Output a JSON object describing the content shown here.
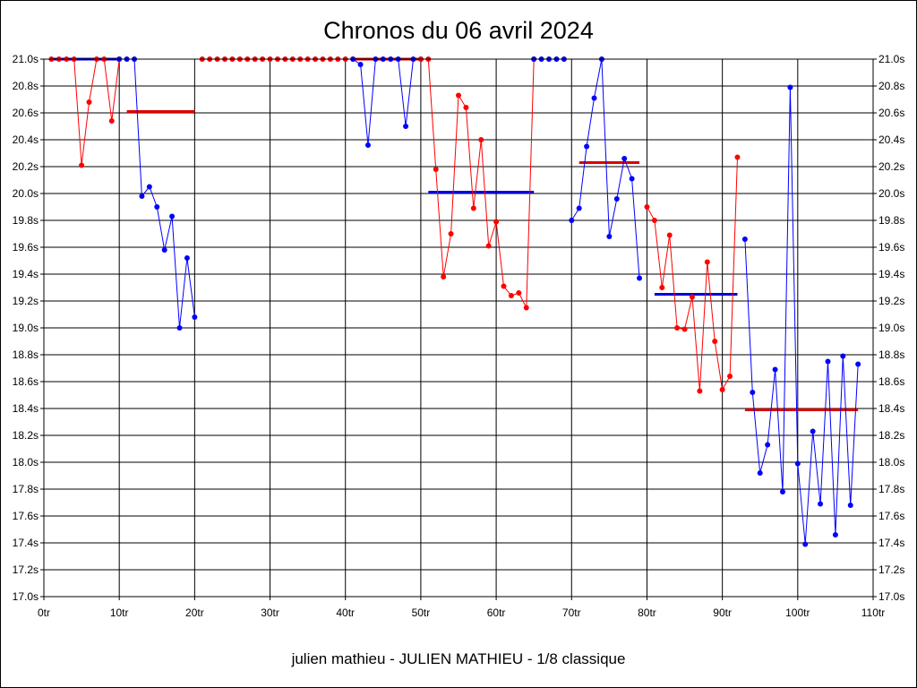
{
  "chart_data": {
    "type": "line",
    "title": "Chronos du 06 avril 2024",
    "subtitle": "julien mathieu - JULIEN MATHIEU - 1/8 classique",
    "xlim": [
      0,
      110
    ],
    "ylim": [
      17.0,
      21.0
    ],
    "x_ticks": [
      {
        "value": 0,
        "label": "0tr"
      },
      {
        "value": 10,
        "label": "10tr"
      },
      {
        "value": 20,
        "label": "20tr"
      },
      {
        "value": 30,
        "label": "30tr"
      },
      {
        "value": 40,
        "label": "40tr"
      },
      {
        "value": 50,
        "label": "50tr"
      },
      {
        "value": 60,
        "label": "60tr"
      },
      {
        "value": 70,
        "label": "70tr"
      },
      {
        "value": 80,
        "label": "80tr"
      },
      {
        "value": 90,
        "label": "90tr"
      },
      {
        "value": 100,
        "label": "100tr"
      },
      {
        "value": 110,
        "label": "110tr"
      }
    ],
    "y_ticks": [
      {
        "value": 21.0,
        "label": "21.0s"
      },
      {
        "value": 20.8,
        "label": "20.8s"
      },
      {
        "value": 20.6,
        "label": "20.6s"
      },
      {
        "value": 20.4,
        "label": "20.4s"
      },
      {
        "value": 20.2,
        "label": "20.2s"
      },
      {
        "value": 20.0,
        "label": "20.0s"
      },
      {
        "value": 19.8,
        "label": "19.8s"
      },
      {
        "value": 19.6,
        "label": "19.6s"
      },
      {
        "value": 19.4,
        "label": "19.4s"
      },
      {
        "value": 19.2,
        "label": "19.2s"
      },
      {
        "value": 19.0,
        "label": "19.0s"
      },
      {
        "value": 18.8,
        "label": "18.8s"
      },
      {
        "value": 18.6,
        "label": "18.6s"
      },
      {
        "value": 18.4,
        "label": "18.4s"
      },
      {
        "value": 18.2,
        "label": "18.2s"
      },
      {
        "value": 18.0,
        "label": "18.0s"
      },
      {
        "value": 17.8,
        "label": "17.8s"
      },
      {
        "value": 17.6,
        "label": "17.6s"
      },
      {
        "value": 17.4,
        "label": "17.4s"
      },
      {
        "value": 17.2,
        "label": "17.2s"
      },
      {
        "value": 17.0,
        "label": "17.0s"
      }
    ],
    "grid": true,
    "colors": {
      "red": "#ff0000",
      "blue": "#0000ff",
      "avg_red": "#dd0000",
      "avg_blue": "#0000dd"
    },
    "series": [
      {
        "color": "red",
        "x": [
          1,
          2,
          3,
          4,
          5,
          6,
          7,
          8,
          9,
          10
        ],
        "y": [
          21.0,
          21.0,
          21.0,
          21.0,
          20.21,
          20.68,
          21.0,
          21.0,
          20.54,
          21.0
        ]
      },
      {
        "color": "blue",
        "x": [
          10,
          11,
          12,
          13,
          14,
          15,
          16,
          17,
          18,
          19,
          20
        ],
        "y": [
          21.0,
          21.0,
          21.0,
          19.98,
          20.05,
          19.9,
          19.58,
          19.83,
          19.0,
          19.52,
          19.08
        ]
      },
      {
        "color": "red",
        "x": [
          21,
          22,
          23,
          24,
          25,
          26,
          27,
          28,
          29,
          30,
          31,
          32,
          33,
          34,
          35,
          36,
          37,
          38,
          39,
          40,
          41
        ],
        "y": [
          21.0,
          21.0,
          21.0,
          21.0,
          21.0,
          21.0,
          21.0,
          21.0,
          21.0,
          21.0,
          21.0,
          21.0,
          21.0,
          21.0,
          21.0,
          21.0,
          21.0,
          21.0,
          21.0,
          21.0,
          21.0
        ]
      },
      {
        "color": "blue",
        "x": [
          41,
          42,
          43,
          44,
          45,
          46,
          47,
          48,
          49,
          50
        ],
        "y": [
          21.0,
          20.96,
          20.36,
          21.0,
          21.0,
          21.0,
          21.0,
          20.5,
          21.0,
          21.0
        ]
      },
      {
        "color": "red",
        "x": [
          50,
          51,
          52,
          53,
          54,
          55,
          56,
          57,
          58,
          59,
          60,
          61,
          62,
          63,
          64,
          65
        ],
        "y": [
          21.0,
          21.0,
          20.18,
          19.38,
          19.7,
          20.73,
          20.64,
          19.89,
          20.4,
          19.61,
          19.79,
          19.31,
          19.24,
          19.26,
          19.15,
          21.0
        ]
      },
      {
        "color": "blue",
        "x": [
          65,
          66,
          67,
          68,
          69
        ],
        "y": [
          21.0,
          21.0,
          21.0,
          21.0,
          21.0
        ]
      },
      {
        "color": "blue",
        "x": [
          70,
          71,
          72,
          73,
          74,
          75,
          76,
          77,
          78,
          79
        ],
        "y": [
          19.8,
          19.89,
          20.35,
          20.71,
          21.0,
          19.68,
          19.96,
          20.26,
          20.11,
          19.37
        ]
      },
      {
        "color": "red",
        "x": [
          80,
          81,
          82,
          83,
          84,
          85,
          86,
          87,
          88,
          89,
          90,
          91,
          92
        ],
        "y": [
          19.9,
          19.8,
          19.3,
          19.69,
          19.0,
          18.99,
          19.23,
          18.53,
          19.49,
          18.9,
          18.54,
          18.64,
          20.27
        ]
      },
      {
        "color": "blue",
        "x": [
          93,
          94,
          95,
          96,
          97,
          98,
          99,
          100,
          101,
          102,
          103,
          104,
          105,
          106,
          107,
          108
        ],
        "y": [
          19.66,
          18.52,
          17.92,
          18.13,
          18.69,
          17.78,
          20.79,
          17.99,
          17.39,
          18.23,
          17.69,
          18.75,
          17.46,
          18.79,
          17.68,
          18.73
        ]
      }
    ],
    "averages": [
      {
        "color": "blue",
        "x1": 1,
        "x2": 10,
        "y": 21.0
      },
      {
        "color": "red",
        "x1": 11,
        "x2": 20,
        "y": 20.61
      },
      {
        "color": "red",
        "x1": 41,
        "x2": 50,
        "y": 21.0
      },
      {
        "color": "blue",
        "x1": 51,
        "x2": 65,
        "y": 20.01
      },
      {
        "color": "red",
        "x1": 71,
        "x2": 79,
        "y": 20.23
      },
      {
        "color": "blue",
        "x1": 81,
        "x2": 92,
        "y": 19.25
      },
      {
        "color": "red",
        "x1": 93,
        "x2": 108,
        "y": 18.39
      }
    ]
  }
}
